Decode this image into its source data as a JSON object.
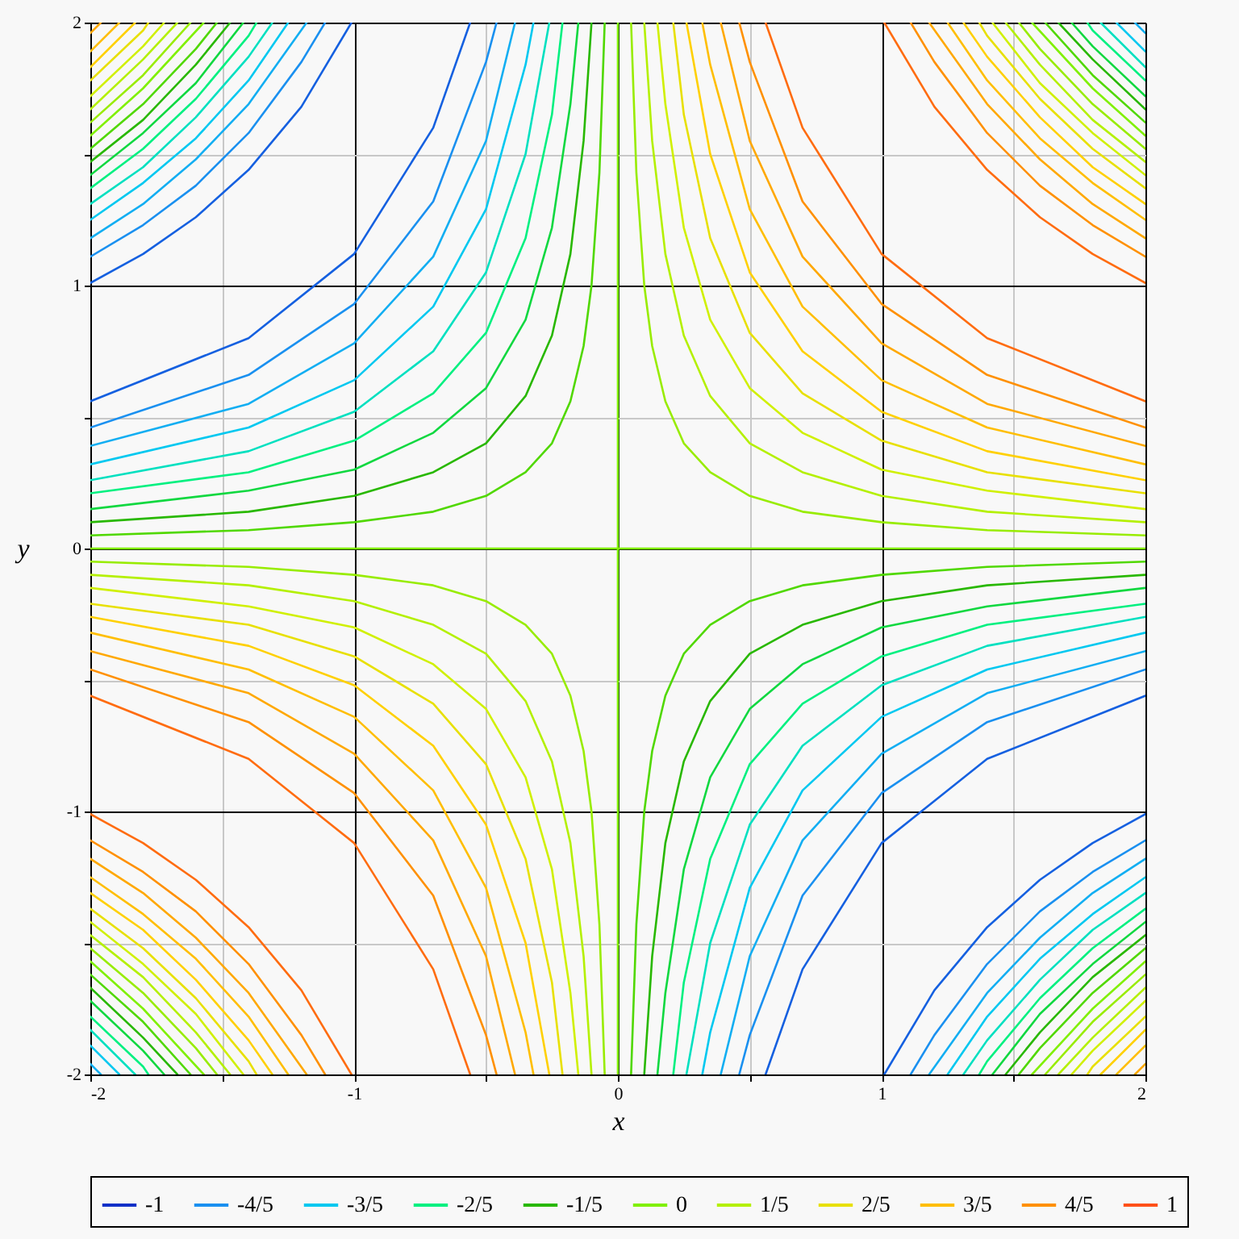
{
  "chart_data": {
    "type": "line",
    "xlabel": "x",
    "ylabel": "y",
    "xlim": [
      -2,
      2
    ],
    "ylim": [
      -2,
      2
    ],
    "xticks": [
      -2,
      {
        "value": -1.5,
        "label": null
      },
      -1,
      {
        "value": -0.5,
        "label": null
      },
      0,
      {
        "value": 0.5,
        "label": null
      },
      1,
      {
        "value": 1.5,
        "label": null
      },
      2
    ],
    "yticks": [
      -2,
      {
        "value": -1.5,
        "label": null
      },
      -1,
      {
        "value": -0.5,
        "label": null
      },
      0,
      {
        "value": 0.5,
        "label": null
      },
      1,
      {
        "value": 1.5,
        "label": null
      },
      2
    ],
    "grid": true,
    "legend": "bottom",
    "series": [
      {
        "name": "-1",
        "color": "#1030c8"
      },
      {
        "color": "#1560e0",
        "x": [
          -0.56,
          -0.7,
          -1,
          -1.4,
          -2,
          null,
          -1.01,
          -1.2,
          -1.4,
          -1.6,
          -1.8,
          -2,
          null,
          0.56,
          0.7,
          1,
          1.4,
          2,
          null,
          1.01,
          1.2,
          1.4,
          1.6,
          1.8,
          2
        ],
        "values": [
          2,
          1.6,
          1.12,
          0.8,
          0.56,
          null,
          2,
          1.68,
          1.44,
          1.26,
          1.12,
          1.01,
          null,
          -2,
          -1.6,
          -1.12,
          -0.8,
          -0.56,
          null,
          -2,
          -1.68,
          -1.44,
          -1.26,
          -1.12,
          -1.01
        ]
      },
      {
        "name": "-4/5",
        "color": "#1a90f0",
        "x": [
          -0.46,
          -0.5,
          -0.7,
          -1,
          -1.4,
          -2,
          null,
          -1.11,
          -1.2,
          -1.4,
          -1.6,
          -1.8,
          -2,
          null,
          0.46,
          0.5,
          0.7,
          1,
          1.4,
          2,
          null,
          1.11,
          1.2,
          1.4,
          1.6,
          1.8,
          2
        ],
        "values": [
          2,
          1.85,
          1.32,
          0.93,
          0.66,
          0.46,
          null,
          2,
          1.85,
          1.58,
          1.38,
          1.23,
          1.11,
          null,
          -2,
          -1.85,
          -1.32,
          -0.93,
          -0.66,
          -0.46,
          null,
          -2,
          -1.85,
          -1.58,
          -1.38,
          -1.23,
          -1.11
        ]
      },
      {
        "color": "#12aef2",
        "x": [
          -0.39,
          -0.5,
          -0.7,
          -1,
          -1.4,
          -2,
          null,
          -1.18,
          -1.4,
          -1.6,
          -1.8,
          -2,
          null,
          0.39,
          0.5,
          0.7,
          1,
          1.4,
          2,
          null,
          1.18,
          1.4,
          1.6,
          1.8,
          2,
          null,
          1.96,
          2,
          null,
          -1.96,
          -2
        ],
        "values": [
          2,
          1.55,
          1.11,
          0.78,
          0.55,
          0.39,
          null,
          2,
          1.69,
          1.48,
          1.31,
          1.18,
          null,
          -2,
          -1.55,
          -1.11,
          -0.78,
          -0.55,
          -0.39,
          null,
          -2,
          -1.69,
          -1.48,
          -1.31,
          -1.18,
          null,
          2,
          1.96,
          null,
          -2,
          -1.96
        ]
      },
      {
        "name": "-3/5",
        "color": "#00c8f0",
        "x": [
          -0.32,
          -0.35,
          -0.5,
          -0.7,
          -1,
          -1.4,
          -2,
          null,
          -1.25,
          -1.4,
          -1.6,
          -1.8,
          -2,
          null,
          0.32,
          0.35,
          0.5,
          0.7,
          1,
          1.4,
          2,
          null,
          1.25,
          1.4,
          1.6,
          1.8,
          2,
          null,
          1.89,
          2,
          null,
          -1.89,
          -2
        ],
        "values": [
          2,
          1.84,
          1.29,
          0.92,
          0.64,
          0.46,
          0.32,
          null,
          2,
          1.78,
          1.56,
          1.39,
          1.25,
          null,
          -2,
          -1.84,
          -1.29,
          -0.92,
          -0.64,
          -0.46,
          -0.32,
          null,
          -2,
          -1.78,
          -1.56,
          -1.39,
          -1.25,
          null,
          2,
          1.89,
          null,
          -2,
          -1.89
        ]
      },
      {
        "color": "#00e0c0",
        "x": [
          -0.26,
          -0.35,
          -0.5,
          -0.7,
          -1,
          -1.4,
          -2,
          null,
          -1.31,
          -1.4,
          -1.6,
          -1.8,
          -2,
          null,
          0.26,
          0.35,
          0.5,
          0.7,
          1,
          1.4,
          2,
          null,
          1.31,
          1.4,
          1.6,
          1.8,
          2,
          null,
          1.83,
          2,
          null,
          -1.83,
          -2
        ],
        "values": [
          2,
          1.5,
          1.05,
          0.75,
          0.52,
          0.37,
          0.26,
          null,
          2,
          1.87,
          1.64,
          1.45,
          1.31,
          null,
          -2,
          -1.5,
          -1.05,
          -0.75,
          -0.52,
          -0.37,
          -0.26,
          null,
          -2,
          -1.87,
          -1.64,
          -1.45,
          -1.31,
          null,
          2,
          1.83,
          null,
          -2,
          -1.83
        ]
      },
      {
        "name": "-2/5",
        "color": "#00f080",
        "x": [
          -0.21,
          -0.25,
          -0.35,
          -0.5,
          -0.7,
          -1,
          -1.4,
          -2,
          null,
          -1.37,
          -1.4,
          -1.6,
          -1.8,
          -2,
          null,
          0.21,
          0.25,
          0.35,
          0.5,
          0.7,
          1,
          1.4,
          2,
          null,
          1.37,
          1.4,
          1.6,
          1.8,
          2,
          null,
          1.78,
          1.8,
          2,
          null,
          -1.78,
          -1.8,
          -2
        ],
        "values": [
          2,
          1.65,
          1.18,
          0.82,
          0.59,
          0.41,
          0.29,
          0.21,
          null,
          2,
          1.95,
          1.71,
          1.52,
          1.37,
          null,
          -2,
          -1.65,
          -1.18,
          -0.82,
          -0.59,
          -0.41,
          -0.29,
          -0.21,
          null,
          -2,
          -1.95,
          -1.71,
          -1.52,
          -1.37,
          null,
          2,
          1.97,
          1.78,
          null,
          -2,
          -1.97,
          -1.78
        ]
      },
      {
        "color": "#10d840",
        "x": [
          -0.15,
          -0.18,
          -0.25,
          -0.35,
          -0.5,
          -0.7,
          -1,
          -1.4,
          -2,
          null,
          -1.42,
          -1.6,
          -1.8,
          -2,
          null,
          0.15,
          0.18,
          0.25,
          0.35,
          0.5,
          0.7,
          1,
          1.4,
          2,
          null,
          1.42,
          1.6,
          1.8,
          2,
          null,
          1.72,
          1.8,
          2,
          null,
          -1.72,
          -1.8,
          -2
        ],
        "values": [
          2,
          1.69,
          1.22,
          0.87,
          0.61,
          0.44,
          0.3,
          0.22,
          0.15,
          null,
          2,
          1.77,
          1.58,
          1.42,
          null,
          -2,
          -1.69,
          -1.22,
          -0.87,
          -0.61,
          -0.44,
          -0.3,
          -0.22,
          -0.15,
          null,
          -2,
          -1.77,
          -1.58,
          -1.42,
          null,
          2,
          1.91,
          1.72,
          null,
          -2,
          -1.91,
          -1.72
        ]
      },
      {
        "name": "-1/5",
        "color": "#28b800",
        "x": [
          -0.1,
          -0.13,
          -0.18,
          -0.25,
          -0.35,
          -0.5,
          -0.7,
          -1,
          -1.4,
          -2,
          null,
          -1.47,
          -1.6,
          -1.8,
          -2,
          null,
          0.1,
          0.13,
          0.18,
          0.25,
          0.35,
          0.5,
          0.7,
          1,
          1.4,
          2,
          null,
          1.47,
          1.6,
          1.8,
          2,
          null,
          1.67,
          1.8,
          2,
          null,
          -1.67,
          -1.8,
          -2
        ],
        "values": [
          2,
          1.55,
          1.12,
          0.81,
          0.58,
          0.4,
          0.29,
          0.2,
          0.14,
          0.1,
          null,
          2,
          1.84,
          1.63,
          1.47,
          null,
          -2,
          -1.55,
          -1.12,
          -0.81,
          -0.58,
          -0.4,
          -0.29,
          -0.2,
          -0.14,
          -0.1,
          null,
          -2,
          -1.84,
          -1.63,
          -1.47,
          null,
          2,
          1.86,
          1.67,
          null,
          -2,
          -1.86,
          -1.67
        ]
      },
      {
        "color": "#50d800",
        "x": [
          -0.05,
          -0.07,
          -0.1,
          -0.13,
          -0.18,
          -0.25,
          -0.35,
          -0.5,
          -0.7,
          -1,
          -1.4,
          -2,
          null,
          -1.52,
          -1.6,
          -1.8,
          -2,
          null,
          0.05,
          0.07,
          0.1,
          0.13,
          0.18,
          0.25,
          0.35,
          0.5,
          0.7,
          1,
          1.4,
          2,
          null,
          1.52,
          1.6,
          1.8,
          2,
          null,
          1.62,
          1.8,
          2,
          null,
          -1.62,
          -1.8,
          -2
        ],
        "values": [
          2,
          1.43,
          1,
          0.77,
          0.56,
          0.4,
          0.29,
          0.2,
          0.14,
          0.1,
          0.07,
          0.05,
          null,
          2,
          1.9,
          1.69,
          1.52,
          null,
          -2,
          -1.43,
          -1,
          -0.77,
          -0.56,
          -0.4,
          -0.29,
          -0.2,
          -0.14,
          -0.1,
          -0.07,
          -0.05,
          null,
          -2,
          -1.9,
          -1.69,
          -1.52,
          null,
          2,
          1.8,
          1.62,
          null,
          -2,
          -1.8,
          -1.62
        ]
      },
      {
        "name": "0",
        "color": "#80f000",
        "x": [
          -2,
          -1.5,
          -0.5,
          0.5,
          1.5,
          2,
          null,
          0,
          0,
          0,
          0,
          0,
          0,
          null,
          1.57,
          1.8,
          2,
          null,
          -1.57,
          -1.8,
          -2,
          null,
          -1.57,
          -1.8,
          -2,
          null,
          1.57,
          1.8,
          2
        ],
        "values": [
          0,
          0,
          0,
          0,
          0,
          0,
          null,
          -2,
          -1.5,
          -0.5,
          0.5,
          1.5,
          2,
          null,
          2,
          1.75,
          1.57,
          null,
          2,
          1.75,
          1.57,
          null,
          -2,
          -1.75,
          -1.57,
          null,
          -2,
          -1.75,
          -1.57
        ]
      },
      {
        "color": "#98ec00",
        "x": [
          0.05,
          0.07,
          0.1,
          0.13,
          0.18,
          0.25,
          0.35,
          0.5,
          0.7,
          1,
          1.4,
          2,
          null,
          1.52,
          1.6,
          1.8,
          2,
          null,
          -0.05,
          -0.07,
          -0.1,
          -0.13,
          -0.18,
          -0.25,
          -0.35,
          -0.5,
          -0.7,
          -1,
          -1.4,
          -2,
          null,
          -1.52,
          -1.6,
          -1.8,
          -2,
          null,
          -1.62,
          -1.8,
          -2,
          null,
          1.62,
          1.8,
          2
        ],
        "values": [
          2,
          1.43,
          1,
          0.77,
          0.56,
          0.4,
          0.29,
          0.2,
          0.14,
          0.1,
          0.07,
          0.05,
          null,
          2,
          1.9,
          1.69,
          1.52,
          null,
          -2,
          -1.43,
          -1,
          -0.77,
          -0.56,
          -0.4,
          -0.29,
          -0.2,
          -0.14,
          -0.1,
          -0.07,
          -0.05,
          null,
          -2,
          -1.9,
          -1.69,
          -1.52,
          null,
          2,
          1.8,
          1.62,
          null,
          -2,
          -1.8,
          -1.62
        ]
      },
      {
        "name": "1/5",
        "color": "#b4f000",
        "x": [
          0.1,
          0.13,
          0.18,
          0.25,
          0.35,
          0.5,
          0.7,
          1,
          1.4,
          2,
          null,
          1.47,
          1.6,
          1.8,
          2,
          null,
          -0.1,
          -0.13,
          -0.18,
          -0.25,
          -0.35,
          -0.5,
          -0.7,
          -1,
          -1.4,
          -2,
          null,
          -1.47,
          -1.6,
          -1.8,
          -2,
          null,
          -1.67,
          -1.8,
          -2,
          null,
          1.67,
          1.8,
          2
        ],
        "values": [
          2,
          1.55,
          1.12,
          0.81,
          0.58,
          0.4,
          0.29,
          0.2,
          0.14,
          0.1,
          null,
          2,
          1.84,
          1.63,
          1.47,
          null,
          -2,
          -1.55,
          -1.12,
          -0.81,
          -0.58,
          -0.4,
          -0.29,
          -0.2,
          -0.14,
          -0.1,
          null,
          -2,
          -1.84,
          -1.63,
          -1.47,
          null,
          2,
          1.86,
          1.67,
          null,
          -2,
          -1.86,
          -1.67
        ]
      },
      {
        "color": "#d0f000",
        "x": [
          0.15,
          0.18,
          0.25,
          0.35,
          0.5,
          0.7,
          1,
          1.4,
          2,
          null,
          1.42,
          1.6,
          1.8,
          2,
          null,
          -0.15,
          -0.18,
          -0.25,
          -0.35,
          -0.5,
          -0.7,
          -1,
          -1.4,
          -2,
          null,
          -1.42,
          -1.6,
          -1.8,
          -2,
          null,
          -1.72,
          -1.8,
          -2,
          null,
          1.72,
          1.8,
          2
        ],
        "values": [
          2,
          1.69,
          1.22,
          0.87,
          0.61,
          0.44,
          0.3,
          0.22,
          0.15,
          null,
          2,
          1.77,
          1.58,
          1.42,
          null,
          -2,
          -1.69,
          -1.22,
          -0.87,
          -0.61,
          -0.44,
          -0.3,
          -0.22,
          -0.15,
          null,
          -2,
          -1.77,
          -1.58,
          -1.42,
          null,
          2,
          1.91,
          1.72,
          null,
          -2,
          -1.91,
          -1.72
        ]
      },
      {
        "name": "2/5",
        "color": "#e8e000",
        "x": [
          0.21,
          0.25,
          0.35,
          0.5,
          0.7,
          1,
          1.4,
          2,
          null,
          1.37,
          1.4,
          1.6,
          1.8,
          2,
          null,
          -0.21,
          -0.25,
          -0.35,
          -0.5,
          -0.7,
          -1,
          -1.4,
          -2,
          null,
          -1.37,
          -1.4,
          -1.6,
          -1.8,
          -2,
          null,
          -1.78,
          -1.8,
          -2,
          null,
          1.78,
          1.8,
          2
        ],
        "values": [
          2,
          1.65,
          1.18,
          0.82,
          0.59,
          0.41,
          0.29,
          0.21,
          null,
          2,
          1.95,
          1.71,
          1.52,
          1.37,
          null,
          -2,
          -1.65,
          -1.18,
          -0.82,
          -0.59,
          -0.41,
          -0.29,
          -0.21,
          null,
          -2,
          -1.95,
          -1.71,
          -1.52,
          -1.37,
          null,
          2,
          1.97,
          1.78,
          null,
          -2,
          -1.97,
          -1.78
        ]
      },
      {
        "color": "#ffd000",
        "x": [
          0.26,
          0.35,
          0.5,
          0.7,
          1,
          1.4,
          2,
          null,
          1.31,
          1.4,
          1.6,
          1.8,
          2,
          null,
          -0.26,
          -0.35,
          -0.5,
          -0.7,
          -1,
          -1.4,
          -2,
          null,
          -1.31,
          -1.4,
          -1.6,
          -1.8,
          -2,
          null,
          -1.83,
          -2,
          null,
          1.83,
          2
        ],
        "values": [
          2,
          1.5,
          1.05,
          0.75,
          0.52,
          0.37,
          0.26,
          null,
          2,
          1.87,
          1.64,
          1.45,
          1.31,
          null,
          -2,
          -1.5,
          -1.05,
          -0.75,
          -0.52,
          -0.37,
          -0.26,
          null,
          -2,
          -1.87,
          -1.64,
          -1.45,
          -1.31,
          null,
          2,
          1.83,
          null,
          -2,
          -1.83
        ]
      },
      {
        "name": "3/5",
        "color": "#ffbe00",
        "x": [
          0.32,
          0.35,
          0.5,
          0.7,
          1,
          1.4,
          2,
          null,
          1.25,
          1.4,
          1.6,
          1.8,
          2,
          null,
          -0.32,
          -0.35,
          -0.5,
          -0.7,
          -1,
          -1.4,
          -2,
          null,
          -1.25,
          -1.4,
          -1.6,
          -1.8,
          -2,
          null,
          -1.89,
          -2,
          null,
          1.89,
          2
        ],
        "values": [
          2,
          1.84,
          1.29,
          0.92,
          0.64,
          0.46,
          0.32,
          null,
          2,
          1.78,
          1.56,
          1.39,
          1.25,
          null,
          -2,
          -1.84,
          -1.29,
          -0.92,
          -0.64,
          -0.46,
          -0.32,
          null,
          -2,
          -1.78,
          -1.56,
          -1.39,
          -1.25,
          null,
          2,
          1.89,
          null,
          -2,
          -1.89
        ]
      },
      {
        "color": "#ffa800",
        "x": [
          0.39,
          0.5,
          0.7,
          1,
          1.4,
          2,
          null,
          1.18,
          1.4,
          1.6,
          1.8,
          2,
          null,
          -0.39,
          -0.5,
          -0.7,
          -1,
          -1.4,
          -2,
          null,
          -1.18,
          -1.4,
          -1.6,
          -1.8,
          -2,
          null,
          -1.96,
          -2,
          null,
          1.96,
          2
        ],
        "values": [
          2,
          1.55,
          1.11,
          0.78,
          0.55,
          0.39,
          null,
          2,
          1.69,
          1.48,
          1.31,
          1.18,
          null,
          -2,
          -1.55,
          -1.11,
          -0.78,
          -0.55,
          -0.39,
          null,
          -2,
          -1.69,
          -1.48,
          -1.31,
          -1.18,
          null,
          2,
          1.96,
          null,
          -2,
          -1.96
        ]
      },
      {
        "name": "4/5",
        "color": "#ff9000",
        "x": [
          0.46,
          0.5,
          0.7,
          1,
          1.4,
          2,
          null,
          1.11,
          1.2,
          1.4,
          1.6,
          1.8,
          2,
          null,
          -0.46,
          -0.5,
          -0.7,
          -1,
          -1.4,
          -2,
          null,
          -1.11,
          -1.2,
          -1.4,
          -1.6,
          -1.8,
          -2
        ],
        "values": [
          2,
          1.85,
          1.32,
          0.93,
          0.66,
          0.46,
          null,
          2,
          1.85,
          1.58,
          1.38,
          1.23,
          1.11,
          null,
          -2,
          -1.85,
          -1.32,
          -0.93,
          -0.66,
          -0.46,
          null,
          -2,
          -1.85,
          -1.58,
          -1.38,
          -1.23,
          -1.11
        ]
      },
      {
        "color": "#ff6c10",
        "x": [
          0.56,
          0.7,
          1,
          1.4,
          2,
          null,
          1.01,
          1.2,
          1.4,
          1.6,
          1.8,
          2,
          null,
          -0.56,
          -0.7,
          -1,
          -1.4,
          -2,
          null,
          -1.01,
          -1.2,
          -1.4,
          -1.6,
          -1.8,
          -2
        ],
        "values": [
          2,
          1.6,
          1.12,
          0.8,
          0.56,
          null,
          2,
          1.68,
          1.44,
          1.26,
          1.12,
          1.01,
          null,
          -2,
          -1.6,
          -1.12,
          -0.8,
          -0.56,
          null,
          -2,
          -1.68,
          -1.44,
          -1.26,
          -1.12,
          -1.01
        ]
      },
      {
        "name": "1",
        "color": "#ff5018"
      }
    ]
  }
}
